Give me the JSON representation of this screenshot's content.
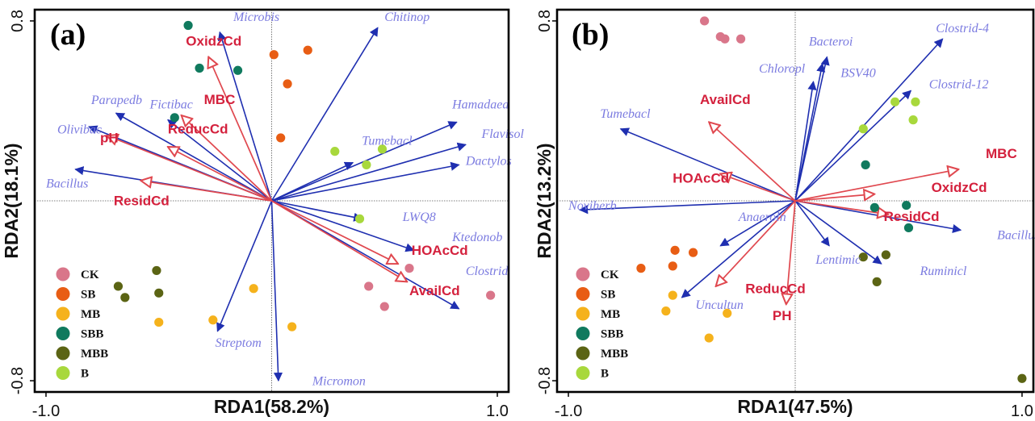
{
  "colors": {
    "species_arrow": "#1f2fb0",
    "env_arrow": "#e0484f",
    "species_label": "#7b7be0",
    "env_label": "#d4213d",
    "CK": "#d9768a",
    "SB": "#e85d14",
    "MB": "#f5b21c",
    "SBB": "#107a5e",
    "MBB": "#5b6414",
    "B": "#a8d83c"
  },
  "legend": [
    "CK",
    "SB",
    "MB",
    "SBB",
    "MBB",
    "B"
  ],
  "chart_data": [
    {
      "type": "scatter",
      "panel_label": "(a)",
      "xlabel": "RDA1(58.2%)",
      "ylabel": "RDA2(18.1%)",
      "xlim": [
        -1.05,
        1.05
      ],
      "ylim": [
        -0.85,
        0.85
      ],
      "x_ticks": [
        {
          "v": -1.0,
          "label": "-1.0"
        },
        {
          "v": 1.0,
          "label": "1.0"
        }
      ],
      "y_ticks": [
        {
          "v": 0.8,
          "label": "0.8"
        },
        {
          "v": -0.8,
          "label": "-0.8"
        }
      ],
      "species": [
        {
          "name": "Microbis",
          "x": -0.23,
          "y": 0.75,
          "lx": -0.17,
          "ly": 0.8
        },
        {
          "name": "Chitinop",
          "x": 0.47,
          "y": 0.77,
          "lx": 0.5,
          "ly": 0.8
        },
        {
          "name": "Parapedb",
          "x": -0.69,
          "y": 0.39,
          "lx": -0.8,
          "ly": 0.43
        },
        {
          "name": "Fictibac",
          "x": -0.46,
          "y": 0.36,
          "lx": -0.54,
          "ly": 0.41
        },
        {
          "name": "Olivibac",
          "x": -0.81,
          "y": 0.33,
          "lx": -0.95,
          "ly": 0.3
        },
        {
          "name": "Hamadaea",
          "x": 0.82,
          "y": 0.35,
          "lx": 0.8,
          "ly": 0.41
        },
        {
          "name": "Tumebacl",
          "x": 0.36,
          "y": 0.17,
          "lx": 0.4,
          "ly": 0.25
        },
        {
          "name": "Flavisol",
          "x": 0.86,
          "y": 0.25,
          "lx": 0.93,
          "ly": 0.28
        },
        {
          "name": "Dactylos",
          "x": 0.83,
          "y": 0.16,
          "lx": 0.86,
          "ly": 0.16
        },
        {
          "name": "Bacillus",
          "x": -0.87,
          "y": 0.14,
          "lx": -1.0,
          "ly": 0.06
        },
        {
          "name": "LWQ8",
          "x": 0.4,
          "y": -0.08,
          "lx": 0.58,
          "ly": -0.09
        },
        {
          "name": "Ktedonob",
          "x": 0.63,
          "y": -0.22,
          "lx": 0.8,
          "ly": -0.18
        },
        {
          "name": "Clostrid",
          "x": 0.83,
          "y": -0.48,
          "lx": 0.86,
          "ly": -0.33
        },
        {
          "name": "Streptom",
          "x": -0.24,
          "y": -0.58,
          "lx": -0.25,
          "ly": -0.65
        },
        {
          "name": "Micromon",
          "x": 0.03,
          "y": -0.8,
          "lx": 0.18,
          "ly": -0.82
        }
      ],
      "env": [
        {
          "name": "OxidzCd",
          "x": -0.28,
          "y": 0.64,
          "lx": -0.38,
          "ly": 0.69
        },
        {
          "name": "MBC",
          "x": -0.4,
          "y": 0.38,
          "lx": -0.3,
          "ly": 0.43
        },
        {
          "name": "pH",
          "x": -0.73,
          "y": 0.29,
          "lx": -0.76,
          "ly": 0.26
        },
        {
          "name": "ReducCd",
          "x": -0.46,
          "y": 0.24,
          "lx": -0.46,
          "ly": 0.3
        },
        {
          "name": "ResidCd",
          "x": -0.58,
          "y": 0.09,
          "lx": -0.7,
          "ly": -0.02
        },
        {
          "name": "HOAcCd",
          "x": 0.56,
          "y": -0.28,
          "lx": 0.62,
          "ly": -0.24
        },
        {
          "name": "AvailCd",
          "x": 0.6,
          "y": -0.36,
          "lx": 0.61,
          "ly": -0.42
        }
      ],
      "samples": [
        {
          "g": "CK",
          "x": 0.61,
          "y": -0.3
        },
        {
          "g": "CK",
          "x": 0.43,
          "y": -0.38
        },
        {
          "g": "CK",
          "x": 0.5,
          "y": -0.47
        },
        {
          "g": "CK",
          "x": 0.97,
          "y": -0.42
        },
        {
          "g": "SB",
          "x": 0.01,
          "y": 0.65
        },
        {
          "g": "SB",
          "x": 0.16,
          "y": 0.67
        },
        {
          "g": "SB",
          "x": 0.07,
          "y": 0.52
        },
        {
          "g": "SB",
          "x": 0.04,
          "y": 0.28
        },
        {
          "g": "MB",
          "x": -0.08,
          "y": -0.39
        },
        {
          "g": "MB",
          "x": -0.26,
          "y": -0.53
        },
        {
          "g": "MB",
          "x": -0.5,
          "y": -0.54
        },
        {
          "g": "MB",
          "x": 0.09,
          "y": -0.56
        },
        {
          "g": "SBB",
          "x": -0.37,
          "y": 0.78
        },
        {
          "g": "SBB",
          "x": -0.32,
          "y": 0.59
        },
        {
          "g": "SBB",
          "x": -0.15,
          "y": 0.58
        },
        {
          "g": "SBB",
          "x": -0.43,
          "y": 0.37
        },
        {
          "g": "MBB",
          "x": -0.51,
          "y": -0.31
        },
        {
          "g": "MBB",
          "x": -0.68,
          "y": -0.38
        },
        {
          "g": "MBB",
          "x": -0.65,
          "y": -0.43
        },
        {
          "g": "MBB",
          "x": -0.5,
          "y": -0.41
        },
        {
          "g": "B",
          "x": 0.28,
          "y": 0.22
        },
        {
          "g": "B",
          "x": 0.49,
          "y": 0.23
        },
        {
          "g": "B",
          "x": 0.42,
          "y": 0.16
        },
        {
          "g": "B",
          "x": 0.39,
          "y": -0.08
        }
      ]
    },
    {
      "type": "scatter",
      "panel_label": "(b)",
      "xlabel": "RDA1(47.5%)",
      "ylabel": "RDA2(13.2%)",
      "xlim": [
        -1.05,
        1.05
      ],
      "ylim": [
        -0.85,
        0.85
      ],
      "x_ticks": [
        {
          "v": -1.0,
          "label": "-1.0"
        },
        {
          "v": 1.0,
          "label": "1.0"
        }
      ],
      "y_ticks": [
        {
          "v": 0.8,
          "label": "0.8"
        },
        {
          "v": -0.8,
          "label": "-0.8"
        }
      ],
      "species": [
        {
          "name": "Clostrid-4",
          "x": 0.65,
          "y": 0.72,
          "lx": 0.62,
          "ly": 0.75
        },
        {
          "name": "Bacteroi",
          "x": 0.14,
          "y": 0.64,
          "lx": 0.06,
          "ly": 0.69
        },
        {
          "name": "Chloropl",
          "x": 0.12,
          "y": 0.61,
          "lx": -0.16,
          "ly": 0.57
        },
        {
          "name": "BSV40",
          "x": 0.08,
          "y": 0.53,
          "lx": 0.2,
          "ly": 0.55
        },
        {
          "name": "Clostrid-12",
          "x": 0.51,
          "y": 0.49,
          "lx": 0.59,
          "ly": 0.5
        },
        {
          "name": "Tumebacl",
          "x": -0.77,
          "y": 0.32,
          "lx": -0.86,
          "ly": 0.37
        },
        {
          "name": "Noviherb",
          "x": -0.95,
          "y": -0.04,
          "lx": -1.0,
          "ly": -0.04
        },
        {
          "name": "Anaeroln",
          "x": -0.33,
          "y": -0.2,
          "lx": -0.25,
          "ly": -0.09
        },
        {
          "name": "Bacillus",
          "x": 0.73,
          "y": -0.13,
          "lx": 0.89,
          "ly": -0.17
        },
        {
          "name": "Lentimic",
          "x": 0.15,
          "y": -0.2,
          "lx": 0.09,
          "ly": -0.28
        },
        {
          "name": "Ruminicl",
          "x": 0.38,
          "y": -0.28,
          "lx": 0.55,
          "ly": -0.33
        },
        {
          "name": "Uncultun",
          "x": -0.5,
          "y": -0.43,
          "lx": -0.44,
          "ly": -0.48
        }
      ],
      "env": [
        {
          "name": "MBC",
          "x": 0.72,
          "y": 0.14,
          "lx": 0.84,
          "ly": 0.19
        },
        {
          "name": "AvailCd",
          "x": -0.38,
          "y": 0.35,
          "lx": -0.42,
          "ly": 0.43
        },
        {
          "name": "HOAcCd",
          "x": -0.33,
          "y": 0.12,
          "lx": -0.54,
          "ly": 0.08
        },
        {
          "name": "OxidzCd",
          "x": 0.35,
          "y": 0.03,
          "lx": 0.6,
          "ly": 0.04
        },
        {
          "name": "ResidCd",
          "x": 0.41,
          "y": -0.06,
          "lx": 0.39,
          "ly": -0.09
        },
        {
          "name": "ReducCd",
          "x": -0.35,
          "y": -0.38,
          "lx": -0.22,
          "ly": -0.41
        },
        {
          "name": "PH",
          "x": -0.04,
          "y": -0.46,
          "lx": -0.1,
          "ly": -0.53
        }
      ],
      "samples": [
        {
          "g": "CK",
          "x": -0.4,
          "y": 0.8
        },
        {
          "g": "CK",
          "x": -0.33,
          "y": 0.73
        },
        {
          "g": "CK",
          "x": -0.31,
          "y": 0.72
        },
        {
          "g": "CK",
          "x": -0.24,
          "y": 0.72
        },
        {
          "g": "SB",
          "x": -0.53,
          "y": -0.22
        },
        {
          "g": "SB",
          "x": -0.45,
          "y": -0.23
        },
        {
          "g": "SB",
          "x": -0.54,
          "y": -0.29
        },
        {
          "g": "SB",
          "x": -0.68,
          "y": -0.3
        },
        {
          "g": "MB",
          "x": -0.54,
          "y": -0.42
        },
        {
          "g": "MB",
          "x": -0.57,
          "y": -0.49
        },
        {
          "g": "MB",
          "x": -0.3,
          "y": -0.5
        },
        {
          "g": "MB",
          "x": -0.38,
          "y": -0.61
        },
        {
          "g": "SBB",
          "x": 0.31,
          "y": 0.16
        },
        {
          "g": "SBB",
          "x": 0.35,
          "y": -0.03
        },
        {
          "g": "SBB",
          "x": 0.49,
          "y": -0.02
        },
        {
          "g": "SBB",
          "x": 0.5,
          "y": -0.12
        },
        {
          "g": "MBB",
          "x": 0.3,
          "y": -0.25
        },
        {
          "g": "MBB",
          "x": 0.4,
          "y": -0.24
        },
        {
          "g": "MBB",
          "x": 0.36,
          "y": -0.36
        },
        {
          "g": "MBB",
          "x": 1.0,
          "y": -0.79
        },
        {
          "g": "B",
          "x": 0.44,
          "y": 0.44
        },
        {
          "g": "B",
          "x": 0.53,
          "y": 0.44
        },
        {
          "g": "B",
          "x": 0.52,
          "y": 0.36
        },
        {
          "g": "B",
          "x": 0.3,
          "y": 0.32
        }
      ]
    }
  ]
}
